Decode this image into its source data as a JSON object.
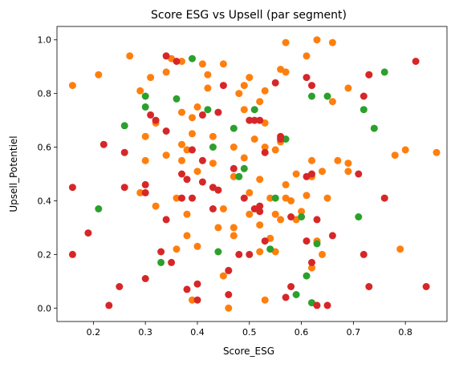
{
  "chart_data": {
    "type": "scatter",
    "title": "Score ESG vs Upsell (par segment)",
    "xlabel": "Score_ESG",
    "ylabel": "Upsell_Potentiel",
    "xlim": [
      0.13,
      0.88
    ],
    "ylim": [
      -0.05,
      1.05
    ],
    "x_ticks": [
      "0.2",
      "0.3",
      "0.4",
      "0.5",
      "0.6",
      "0.7",
      "0.8"
    ],
    "y_ticks": [
      "0.0",
      "0.2",
      "0.4",
      "0.6",
      "0.8",
      "1.0"
    ],
    "grid": false,
    "legend": "none",
    "colors": {
      "orange": "#ff7f0e",
      "green": "#2ca02c",
      "red": "#d62728"
    },
    "series": [
      {
        "color": "#ff7f0e",
        "points": [
          [
            0.16,
            0.83
          ],
          [
            0.21,
            0.87
          ],
          [
            0.27,
            0.94
          ],
          [
            0.29,
            0.81
          ],
          [
            0.31,
            0.86
          ],
          [
            0.34,
            0.88
          ],
          [
            0.35,
            0.93
          ],
          [
            0.37,
            0.92
          ],
          [
            0.41,
            0.91
          ],
          [
            0.42,
            0.87
          ],
          [
            0.42,
            0.82
          ],
          [
            0.4,
            0.75
          ],
          [
            0.39,
            0.71
          ],
          [
            0.37,
            0.73
          ],
          [
            0.45,
            0.91
          ],
          [
            0.48,
            0.8
          ],
          [
            0.49,
            0.74
          ],
          [
            0.5,
            0.86
          ],
          [
            0.49,
            0.83
          ],
          [
            0.52,
            0.77
          ],
          [
            0.53,
            0.81
          ],
          [
            0.53,
            0.69
          ],
          [
            0.56,
            0.89
          ],
          [
            0.57,
            0.88
          ],
          [
            0.57,
            0.99
          ],
          [
            0.61,
            0.94
          ],
          [
            0.63,
            1.0
          ],
          [
            0.66,
            0.99
          ],
          [
            0.69,
            0.82
          ],
          [
            0.66,
            0.77
          ],
          [
            0.73,
            0.87
          ],
          [
            0.3,
            0.64
          ],
          [
            0.32,
            0.69
          ],
          [
            0.34,
            0.57
          ],
          [
            0.37,
            0.61
          ],
          [
            0.38,
            0.59
          ],
          [
            0.39,
            0.65
          ],
          [
            0.37,
            0.55
          ],
          [
            0.4,
            0.51
          ],
          [
            0.43,
            0.64
          ],
          [
            0.43,
            0.54
          ],
          [
            0.47,
            0.6
          ],
          [
            0.49,
            0.56
          ],
          [
            0.51,
            0.63
          ],
          [
            0.53,
            0.6
          ],
          [
            0.55,
            0.59
          ],
          [
            0.56,
            0.62
          ],
          [
            0.3,
            0.55
          ],
          [
            0.29,
            0.43
          ],
          [
            0.32,
            0.38
          ],
          [
            0.36,
            0.41
          ],
          [
            0.38,
            0.35
          ],
          [
            0.38,
            0.27
          ],
          [
            0.4,
            0.23
          ],
          [
            0.44,
            0.3
          ],
          [
            0.45,
            0.37
          ],
          [
            0.47,
            0.49
          ],
          [
            0.47,
            0.3
          ],
          [
            0.5,
            0.43
          ],
          [
            0.5,
            0.35
          ],
          [
            0.52,
            0.31
          ],
          [
            0.52,
            0.48
          ],
          [
            0.54,
            0.41
          ],
          [
            0.55,
            0.35
          ],
          [
            0.57,
            0.41
          ],
          [
            0.57,
            0.46
          ],
          [
            0.58,
            0.4
          ],
          [
            0.6,
            0.36
          ],
          [
            0.59,
            0.5
          ],
          [
            0.62,
            0.55
          ],
          [
            0.62,
            0.49
          ],
          [
            0.64,
            0.51
          ],
          [
            0.65,
            0.41
          ],
          [
            0.67,
            0.55
          ],
          [
            0.69,
            0.54
          ],
          [
            0.69,
            0.51
          ],
          [
            0.78,
            0.57
          ],
          [
            0.8,
            0.59
          ],
          [
            0.86,
            0.58
          ],
          [
            0.79,
            0.22
          ],
          [
            0.36,
            0.22
          ],
          [
            0.45,
            0.12
          ],
          [
            0.47,
            0.27
          ],
          [
            0.52,
            0.21
          ],
          [
            0.55,
            0.21
          ],
          [
            0.56,
            0.33
          ],
          [
            0.59,
            0.33
          ],
          [
            0.39,
            0.03
          ],
          [
            0.46,
            0.14
          ],
          [
            0.53,
            0.03
          ],
          [
            0.61,
            0.42
          ],
          [
            0.62,
            0.15
          ],
          [
            0.63,
            0.25
          ],
          [
            0.46,
            0.0
          ],
          [
            0.54,
            0.26
          ],
          [
            0.64,
            0.2
          ]
        ]
      },
      {
        "color": "#2ca02c",
        "points": [
          [
            0.3,
            0.79
          ],
          [
            0.3,
            0.75
          ],
          [
            0.36,
            0.78
          ],
          [
            0.39,
            0.93
          ],
          [
            0.42,
            0.74
          ],
          [
            0.43,
            0.6
          ],
          [
            0.47,
            0.67
          ],
          [
            0.48,
            0.49
          ],
          [
            0.49,
            0.52
          ],
          [
            0.51,
            0.74
          ],
          [
            0.55,
            0.41
          ],
          [
            0.57,
            0.63
          ],
          [
            0.6,
            0.34
          ],
          [
            0.62,
            0.79
          ],
          [
            0.65,
            0.79
          ],
          [
            0.72,
            0.74
          ],
          [
            0.74,
            0.67
          ],
          [
            0.76,
            0.88
          ],
          [
            0.71,
            0.34
          ],
          [
            0.63,
            0.24
          ],
          [
            0.61,
            0.12
          ],
          [
            0.62,
            0.02
          ],
          [
            0.59,
            0.05
          ],
          [
            0.54,
            0.22
          ],
          [
            0.44,
            0.21
          ],
          [
            0.33,
            0.17
          ],
          [
            0.26,
            0.68
          ],
          [
            0.21,
            0.37
          ]
        ]
      },
      {
        "color": "#d62728",
        "points": [
          [
            0.16,
            0.45
          ],
          [
            0.16,
            0.2
          ],
          [
            0.19,
            0.28
          ],
          [
            0.22,
            0.61
          ],
          [
            0.23,
            0.01
          ],
          [
            0.26,
            0.58
          ],
          [
            0.26,
            0.45
          ],
          [
            0.25,
            0.08
          ],
          [
            0.3,
            0.11
          ],
          [
            0.3,
            0.43
          ],
          [
            0.3,
            0.46
          ],
          [
            0.31,
            0.72
          ],
          [
            0.32,
            0.7
          ],
          [
            0.33,
            0.21
          ],
          [
            0.34,
            0.33
          ],
          [
            0.34,
            0.66
          ],
          [
            0.34,
            0.94
          ],
          [
            0.36,
            0.92
          ],
          [
            0.35,
            0.17
          ],
          [
            0.37,
            0.41
          ],
          [
            0.37,
            0.5
          ],
          [
            0.38,
            0.48
          ],
          [
            0.38,
            0.07
          ],
          [
            0.39,
            0.41
          ],
          [
            0.39,
            0.59
          ],
          [
            0.4,
            0.09
          ],
          [
            0.4,
            0.03
          ],
          [
            0.41,
            0.72
          ],
          [
            0.41,
            0.55
          ],
          [
            0.41,
            0.47
          ],
          [
            0.43,
            0.45
          ],
          [
            0.43,
            0.37
          ],
          [
            0.44,
            0.44
          ],
          [
            0.44,
            0.73
          ],
          [
            0.45,
            0.83
          ],
          [
            0.46,
            0.14
          ],
          [
            0.46,
            0.05
          ],
          [
            0.47,
            0.52
          ],
          [
            0.48,
            0.2
          ],
          [
            0.49,
            0.41
          ],
          [
            0.5,
            0.7
          ],
          [
            0.5,
            0.2
          ],
          [
            0.51,
            0.37
          ],
          [
            0.51,
            0.7
          ],
          [
            0.52,
            0.7
          ],
          [
            0.52,
            0.36
          ],
          [
            0.52,
            0.38
          ],
          [
            0.53,
            0.58
          ],
          [
            0.53,
            0.25
          ],
          [
            0.55,
            0.84
          ],
          [
            0.56,
            0.64
          ],
          [
            0.56,
            0.63
          ],
          [
            0.58,
            0.08
          ],
          [
            0.58,
            0.34
          ],
          [
            0.57,
            0.04
          ],
          [
            0.61,
            0.86
          ],
          [
            0.61,
            0.49
          ],
          [
            0.62,
            0.83
          ],
          [
            0.62,
            0.5
          ],
          [
            0.63,
            0.33
          ],
          [
            0.63,
            0.01
          ],
          [
            0.65,
            0.01
          ],
          [
            0.61,
            0.25
          ],
          [
            0.62,
            0.17
          ],
          [
            0.66,
            0.27
          ],
          [
            0.71,
            0.5
          ],
          [
            0.72,
            0.2
          ],
          [
            0.72,
            0.79
          ],
          [
            0.73,
            0.87
          ],
          [
            0.73,
            0.08
          ],
          [
            0.76,
            0.41
          ],
          [
            0.82,
            0.92
          ],
          [
            0.84,
            0.08
          ]
        ]
      }
    ]
  }
}
